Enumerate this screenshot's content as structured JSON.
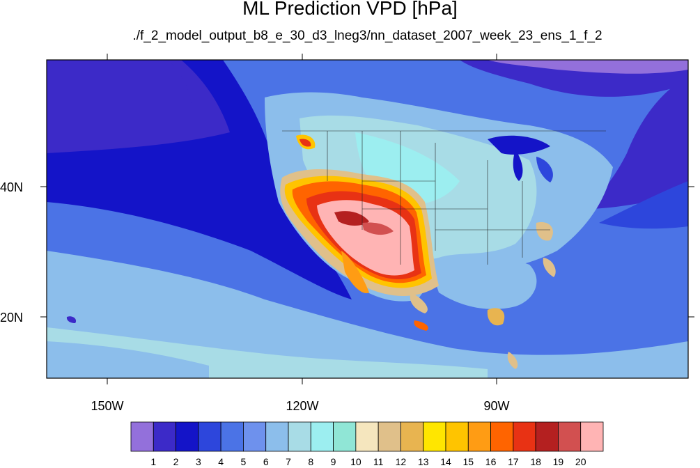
{
  "title": "ML Prediction VPD [hPa]",
  "subtitle": "./f_2_model_output_b8_e_30_d3_lneg3/nn_dataset_2007_week_23_ens_1_f_2",
  "map": {
    "lon_labels": [
      "150W",
      "120W",
      "90W"
    ],
    "lat_labels": [
      "40N",
      "20N"
    ]
  },
  "colorbar": {
    "labels": [
      "1",
      "2",
      "3",
      "4",
      "5",
      "6",
      "7",
      "8",
      "9",
      "10",
      "11",
      "12",
      "13",
      "14",
      "15",
      "16",
      "17",
      "18",
      "19",
      "20"
    ],
    "colors": [
      "#9370db",
      "#3c2ac8",
      "#1414c8",
      "#2d46dc",
      "#4b73e6",
      "#6e91ed",
      "#8cbeeb",
      "#a8dce6",
      "#9ceef0",
      "#90e6d6",
      "#f5e6be",
      "#e0c08a",
      "#e8b450",
      "#ffe600",
      "#ffc400",
      "#ff9c14",
      "#ff6400",
      "#e83214",
      "#b42020",
      "#d25050",
      "#ffb4b4"
    ]
  }
}
